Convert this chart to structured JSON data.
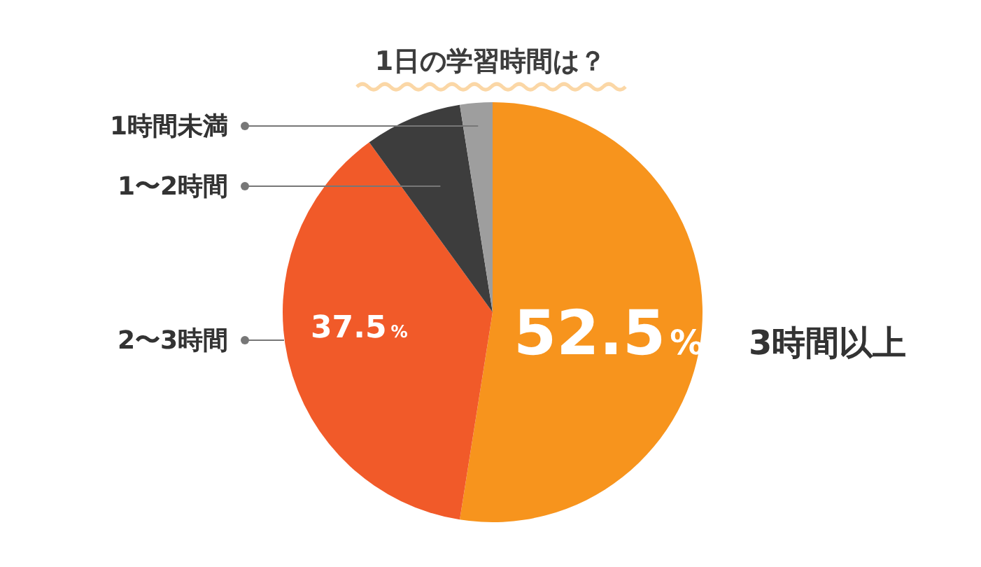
{
  "chart_data": {
    "type": "pie",
    "title": "1日の学習時間は？",
    "categories": [
      "3時間以上",
      "2〜3時間",
      "1〜2時間",
      "1時間未満"
    ],
    "values": [
      52.5,
      37.5,
      7.5,
      2.5
    ],
    "colors": [
      "#f7941d",
      "#f15a29",
      "#3d3d3d",
      "#9e9e9e"
    ],
    "value_labels": [
      "52.5%",
      "37.5%",
      null,
      null
    ]
  }
}
